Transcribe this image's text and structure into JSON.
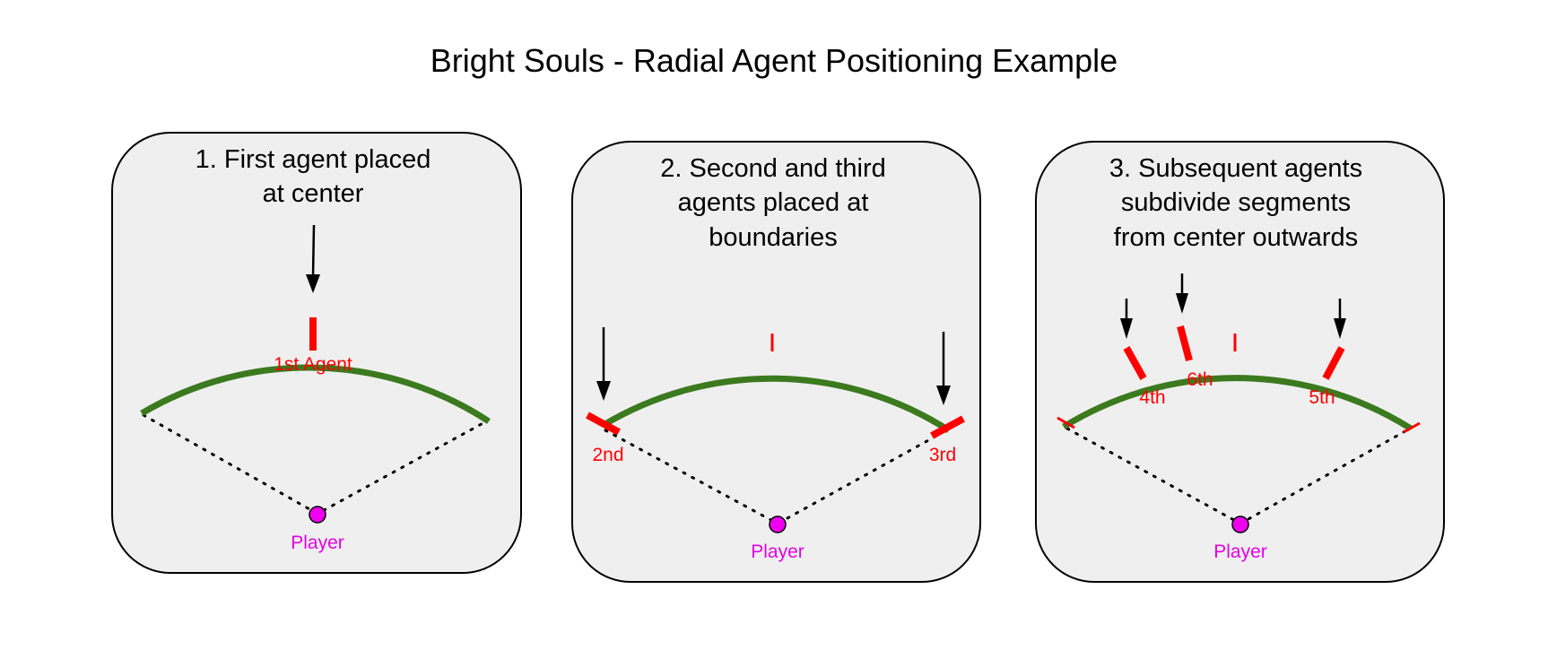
{
  "title": "Bright Souls - Radial Agent Positioning Example",
  "colors": {
    "arc": "#3b7a1e",
    "marker": "#ff0000",
    "player": "#ee00ee",
    "player_label": "#e600e6",
    "panel_bg": "#efefef"
  },
  "panels": [
    {
      "caption_lines": [
        "1. First agent placed",
        "at center"
      ],
      "agent_labels": [
        "1st Agent"
      ],
      "player_label": "Player"
    },
    {
      "caption_lines": [
        "2. Second and third",
        "agents placed at",
        "boundaries"
      ],
      "agent_labels": [
        "2nd",
        "3rd"
      ],
      "player_label": "Player"
    },
    {
      "caption_lines": [
        "3. Subsequent agents",
        "subdivide segments",
        "from center outwards"
      ],
      "agent_labels": [
        "4th",
        "6th",
        "5th"
      ],
      "player_label": "Player"
    }
  ]
}
